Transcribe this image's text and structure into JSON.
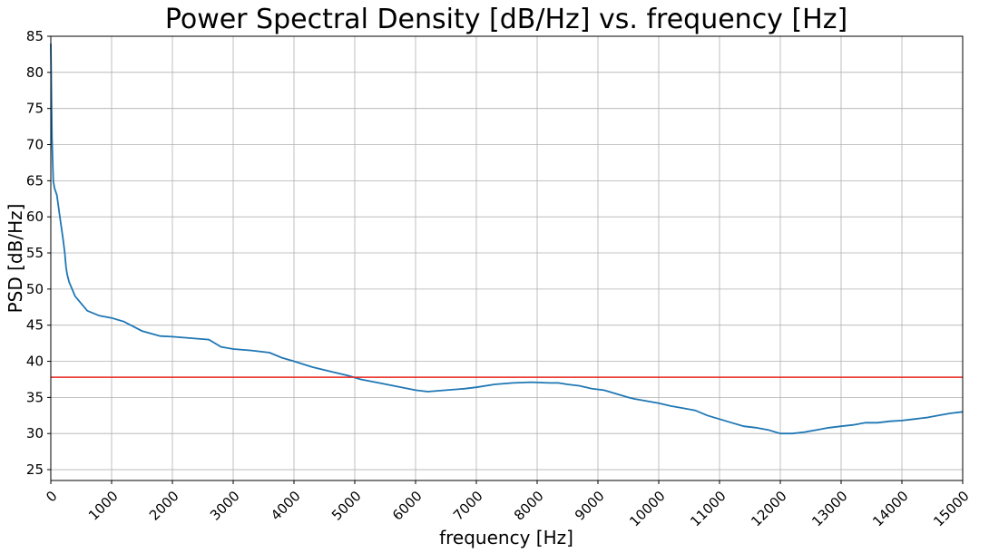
{
  "chart_data": {
    "type": "line",
    "title": "Power Spectral Density [dB/Hz] vs. frequency [Hz]",
    "xlabel": "frequency [Hz]",
    "ylabel": "PSD [dB/Hz]",
    "xlim": [
      0,
      15000
    ],
    "ylim": [
      23.5,
      85
    ],
    "x_ticks": [
      0,
      1000,
      2000,
      3000,
      4000,
      5000,
      6000,
      7000,
      8000,
      9000,
      10000,
      11000,
      12000,
      13000,
      14000,
      15000
    ],
    "y_ticks": [
      25,
      30,
      35,
      40,
      45,
      50,
      55,
      60,
      65,
      70,
      75,
      80,
      85
    ],
    "grid": true,
    "series": [
      {
        "color": "#1f77b4",
        "x": [
          0,
          20,
          40,
          60,
          100,
          150,
          200,
          230,
          250,
          270,
          300,
          400,
          500,
          600,
          800,
          1000,
          1200,
          1500,
          1800,
          2000,
          2300,
          2600,
          2800,
          3000,
          3300,
          3600,
          3800,
          4000,
          4300,
          4600,
          4900,
          5100,
          5400,
          5700,
          6000,
          6200,
          6500,
          6800,
          7000,
          7300,
          7600,
          7900,
          8200,
          8350,
          8500,
          8700,
          8900,
          9100,
          9300,
          9500,
          9600,
          9800,
          10000,
          10200,
          10400,
          10600,
          10800,
          11000,
          11200,
          11400,
          11600,
          11800,
          12000,
          12200,
          12400,
          12600,
          12800,
          13000,
          13200,
          13400,
          13600,
          13800,
          14000,
          14200,
          14400,
          14600,
          14800,
          15000
        ],
        "y": [
          84,
          71,
          65,
          64,
          63,
          60,
          57,
          55,
          53,
          52,
          51,
          49,
          48,
          47,
          46.3,
          46,
          45.5,
          44.2,
          43.5,
          43.4,
          43.2,
          43,
          42,
          41.7,
          41.5,
          41.2,
          40.5,
          40,
          39.2,
          38.6,
          38,
          37.5,
          37,
          36.5,
          36,
          35.8,
          36,
          36.2,
          36.4,
          36.8,
          37,
          37.1,
          37,
          37,
          36.8,
          36.6,
          36.2,
          36,
          35.5,
          35,
          34.8,
          34.5,
          34.2,
          33.8,
          33.5,
          33.2,
          32.5,
          32,
          31.5,
          31,
          30.8,
          30.5,
          30,
          30,
          30.2,
          30.5,
          30.8,
          31,
          31.2,
          31.5,
          31.5,
          31.7,
          31.8,
          32,
          32.2,
          32.5,
          32.8,
          33
        ]
      },
      {
        "color": "#e8241c",
        "x": [
          0,
          15000
        ],
        "y": [
          37.8,
          37.8
        ]
      }
    ]
  }
}
